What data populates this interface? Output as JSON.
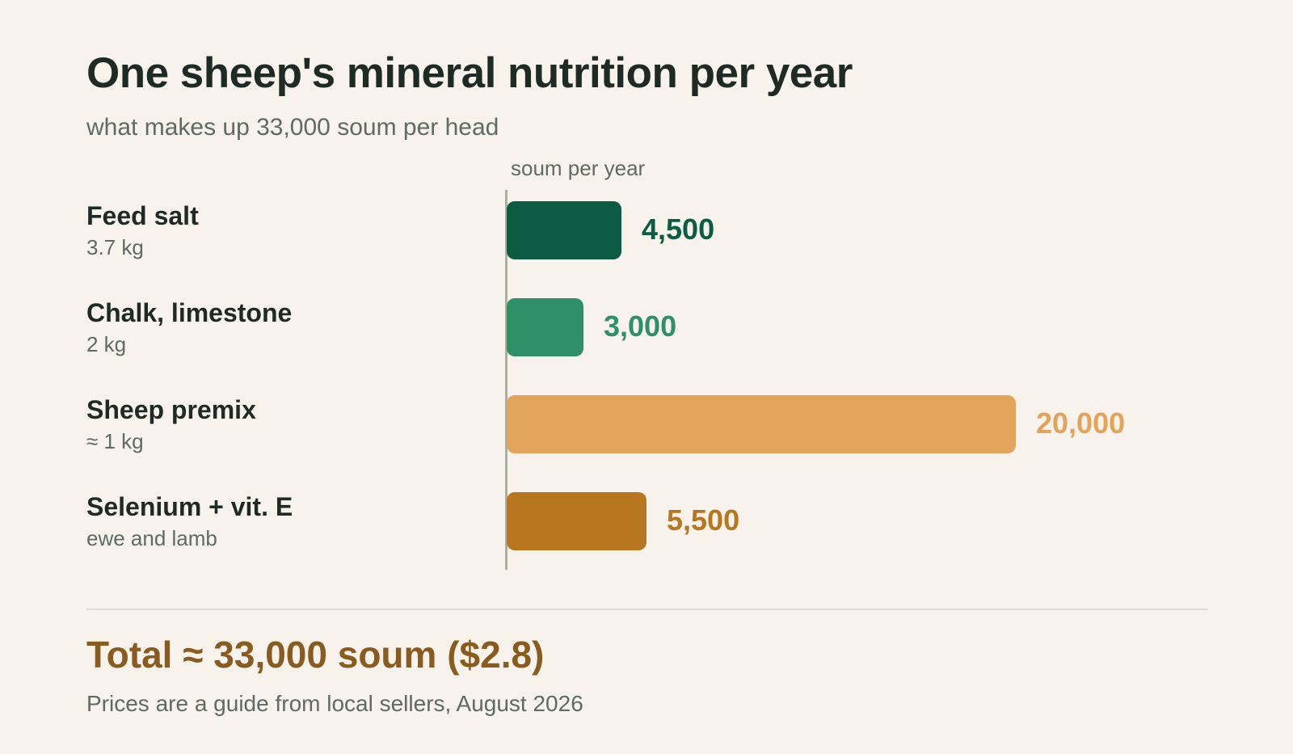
{
  "title": "One sheep's mineral nutrition per year",
  "subtitle": "what makes up 33,000 soum per head",
  "total_text": "Total ≈ 33,000 soum ($2.8)",
  "footnote": "Prices are a guide from local sellers, August 2026",
  "chart_data": {
    "type": "bar",
    "orientation": "horizontal",
    "unit_label": "soum per year",
    "xlim": [
      0,
      20000
    ],
    "grid": false,
    "categories": [
      "Feed salt",
      "Chalk, limestone",
      "Sheep premix",
      "Selenium + vit. E"
    ],
    "category_notes": [
      "3.7 kg",
      "2 kg",
      "≈ 1 kg",
      "ewe and lamb"
    ],
    "values": [
      4500,
      3000,
      20000,
      5500
    ],
    "value_labels": [
      "4,500",
      "3,000",
      "20,000",
      "5,500"
    ],
    "colors": [
      "#0b5c42",
      "#2f9068",
      "#e2a45b",
      "#b8771f"
    ]
  }
}
